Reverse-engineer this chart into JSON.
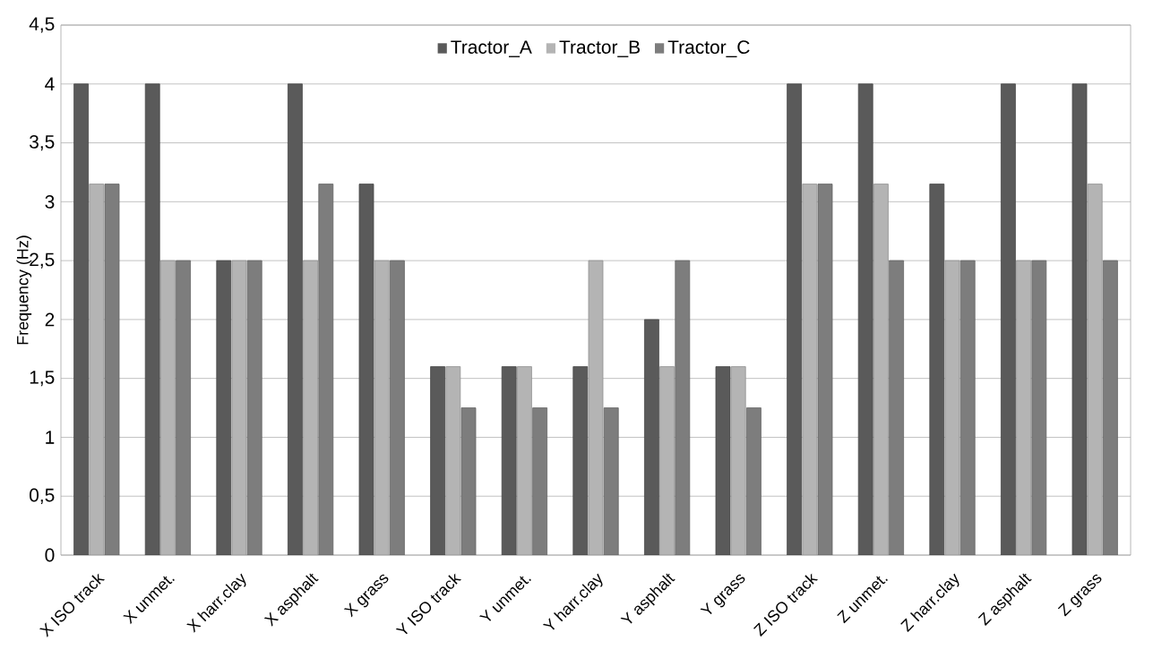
{
  "chart_data": {
    "type": "bar",
    "ylabel": "Frequency (Hz)",
    "categories": [
      "X ISO track",
      "X unmet.",
      "X harr.clay",
      "X asphalt",
      "X grass",
      "Y ISO track",
      "Y unmet.",
      "Y harr.clay",
      "Y asphalt",
      "Y grass",
      "Z ISO track",
      "Z unmet.",
      "Z harr.clay",
      "Z asphalt",
      "Z grass"
    ],
    "series": [
      {
        "name": "Tractor_A",
        "color": "#5a5a5a",
        "values": [
          4,
          4,
          2.5,
          4,
          3.15,
          1.6,
          1.6,
          1.6,
          2,
          1.6,
          4,
          4,
          3.15,
          4,
          4
        ]
      },
      {
        "name": "Tractor_B",
        "color": "#b4b4b4",
        "values": [
          3.15,
          2.5,
          2.5,
          2.5,
          2.5,
          1.6,
          1.6,
          2.5,
          1.6,
          1.6,
          3.15,
          3.15,
          2.5,
          2.5,
          3.15
        ]
      },
      {
        "name": "Tractor_C",
        "color": "#7d7d7d",
        "values": [
          3.15,
          2.5,
          2.5,
          3.15,
          2.5,
          1.25,
          1.25,
          1.25,
          2.5,
          1.25,
          3.15,
          2.5,
          2.5,
          2.5,
          2.5
        ]
      }
    ],
    "ylim": [
      0,
      4.5
    ],
    "yticks": [
      0,
      {
        "value": 0.5,
        "label": "0,5"
      },
      1,
      {
        "value": 1.5,
        "label": "1,5"
      },
      2,
      {
        "value": 2.5,
        "label": "2,5"
      },
      3,
      {
        "value": 3.5,
        "label": "3,5"
      },
      4,
      {
        "value": 4.5,
        "label": "4,5"
      }
    ],
    "grid": "y",
    "legend": "top"
  }
}
